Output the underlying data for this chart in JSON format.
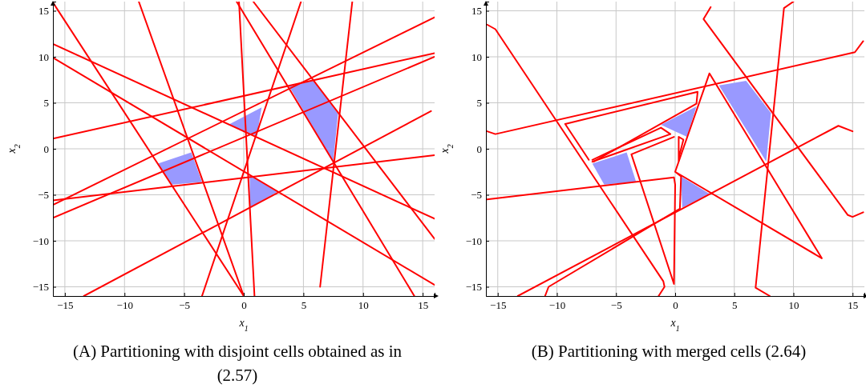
{
  "chart_data": [
    {
      "type": "line",
      "title": "(A) Partitioning with disjoint cells obtained as in (2.57)",
      "xlabel": "x$_{1}$",
      "ylabel": "x$_{2}$",
      "xlim": [
        -16,
        16
      ],
      "ylim": [
        -16,
        16
      ],
      "xticks": [
        -15,
        -10,
        -5,
        0,
        5,
        10,
        15
      ],
      "yticks": [
        -15,
        -10,
        -5,
        0,
        5,
        10,
        15
      ],
      "grid": true,
      "series": [
        {
          "type": "area",
          "color": "#9999ff",
          "x": [
            -7.2,
            -4.4,
            -3.5,
            -6.0
          ],
          "values": [
            -1.6,
            -0.4,
            -3.6,
            -3.9
          ]
        },
        {
          "type": "area",
          "color": "#9999ff",
          "x": [
            -1.3,
            1.5,
            1.1,
            0.1
          ],
          "values": [
            2.6,
            4.5,
            1.4,
            1.9
          ]
        },
        {
          "type": "area",
          "color": "#9999ff",
          "x": [
            3.8,
            5.9,
            7.9,
            7.5
          ],
          "values": [
            6.8,
            7.4,
            3.8,
            -1.4
          ]
        },
        {
          "type": "area",
          "color": "#9999ff",
          "x": [
            0.5,
            2.8,
            0.5
          ],
          "values": [
            -2.9,
            -4.7,
            -6.4
          ]
        },
        {
          "color": "#ff0000",
          "x": [
            -16,
            0
          ],
          "values": [
            15.9,
            -16
          ]
        },
        {
          "color": "#ff0000",
          "x": [
            -8.8,
            0
          ],
          "values": [
            16,
            -16
          ]
        },
        {
          "color": "#ff0000",
          "x": [
            -16,
            16
          ],
          "values": [
            11.4,
            -7.6
          ]
        },
        {
          "color": "#ff0000",
          "x": [
            -16,
            16
          ],
          "values": [
            9.9,
            -14.8
          ]
        },
        {
          "color": "#ff0000",
          "x": [
            -16,
            16
          ],
          "values": [
            1.1,
            10.4
          ]
        },
        {
          "color": "#ff0000",
          "x": [
            -16,
            16
          ],
          "values": [
            -5.6,
            -0.7
          ]
        },
        {
          "color": "#ff0000",
          "x": [
            -16,
            16
          ],
          "values": [
            -6.1,
            14.3
          ]
        },
        {
          "color": "#ff0000",
          "x": [
            -16,
            16
          ],
          "values": [
            -7.5,
            10.0
          ]
        },
        {
          "color": "#ff0000",
          "x": [
            -13.4,
            15.7
          ],
          "values": [
            -16,
            4.1
          ]
        },
        {
          "color": "#ff0000",
          "x": [
            -3.5,
            4.8
          ],
          "values": [
            -16,
            16
          ]
        },
        {
          "color": "#ff0000",
          "x": [
            -0.4,
            0.9
          ],
          "values": [
            16,
            -16
          ]
        },
        {
          "color": "#ff0000",
          "x": [
            -0.6,
            14.3
          ],
          "values": [
            16,
            -16
          ]
        },
        {
          "color": "#ff0000",
          "x": [
            0.8,
            16
          ],
          "values": [
            16,
            -9.8
          ]
        },
        {
          "color": "#ff0000",
          "x": [
            9.1,
            6.4
          ],
          "values": [
            16,
            -15
          ]
        }
      ]
    },
    {
      "type": "line",
      "title": "(B) Partitioning with merged cells (2.64)",
      "xlabel": "x$_{1}$",
      "ylabel": "x$_{2}$",
      "xlim": [
        -16,
        16
      ],
      "ylim": [
        -16,
        16
      ],
      "xticks": [
        -15,
        -10,
        -5,
        0,
        5,
        10,
        15
      ],
      "yticks": [
        -15,
        -10,
        -5,
        0,
        5,
        10,
        15
      ],
      "grid": true,
      "series": [
        {
          "type": "area",
          "color": "#9999ff",
          "x": [
            -7.0,
            -4.1,
            -3.3,
            -6.0
          ],
          "values": [
            -1.6,
            -0.4,
            -3.6,
            -3.9
          ]
        },
        {
          "type": "area",
          "color": "#9999ff",
          "x": [
            -1.2,
            1.8,
            1.0,
            0.0
          ],
          "values": [
            2.6,
            4.6,
            1.3,
            1.9
          ]
        },
        {
          "type": "area",
          "color": "#9999ff",
          "x": [
            3.7,
            6.0,
            8.1,
            7.7
          ],
          "values": [
            6.9,
            7.4,
            3.9,
            -1.4
          ]
        },
        {
          "type": "area",
          "color": "#9999ff",
          "x": [
            0.5,
            2.9,
            0.6
          ],
          "values": [
            -3.0,
            -4.9,
            -6.4
          ]
        },
        {
          "color": "#ff0000",
          "x": [
            -15.9,
            -15.2,
            -1.0,
            -0.9,
            -1.4
          ],
          "values": [
            13.5,
            13.0,
            -14.4,
            -15.0,
            -16.0
          ]
        },
        {
          "color": "#ff0000",
          "x": [
            -15.9,
            -15.2,
            15.2,
            15.9
          ],
          "values": [
            1.9,
            1.6,
            10.5,
            11.7
          ]
        },
        {
          "color": "#ff0000",
          "x": [
            -15.9,
            -0.1,
            0.0,
            -0.1,
            -3.7,
            -0.1
          ],
          "values": [
            -5.5,
            -3.1,
            -3.9,
            -14.7,
            -0.6,
            1.3
          ]
        },
        {
          "color": "#ff0000",
          "x": [
            -7.0,
            -0.4,
            -1.2,
            -7.0
          ],
          "values": [
            -1.4,
            1.6,
            2.3,
            -1.2
          ]
        },
        {
          "color": "#ff0000",
          "x": [
            -7.3,
            -9.3,
            1.9,
            1.8,
            -6.9
          ],
          "values": [
            -1.2,
            2.7,
            6.2,
            4.9,
            -1.4
          ]
        },
        {
          "color": "#ff0000",
          "x": [
            -13.3,
            13.8,
            15.0
          ],
          "values": [
            -16.0,
            2.5,
            1.9
          ]
        },
        {
          "color": "#ff0000",
          "x": [
            -11.0,
            -10.7,
            0.4,
            0.5,
            0.0,
            12.4,
            2.9,
            0.0
          ],
          "values": [
            -16.0,
            -15.0,
            -6.5,
            -3.0,
            -2.5,
            -11.9,
            8.2,
            -2.5
          ]
        },
        {
          "color": "#ff0000",
          "x": [
            0.3,
            0.3,
            0.7,
            0.3
          ],
          "values": [
            -1.3,
            1.3,
            1.0,
            -1.0
          ]
        },
        {
          "color": "#ff0000",
          "x": [
            3.0,
            2.4,
            14.6,
            15.0,
            15.9
          ],
          "values": [
            15.4,
            14.1,
            -7.2,
            -7.4,
            -6.9
          ]
        },
        {
          "color": "#ff0000",
          "x": [
            10.0,
            9.2,
            6.8,
            8.0
          ],
          "values": [
            16.0,
            15.3,
            -15.1,
            -16.0
          ]
        }
      ]
    }
  ]
}
